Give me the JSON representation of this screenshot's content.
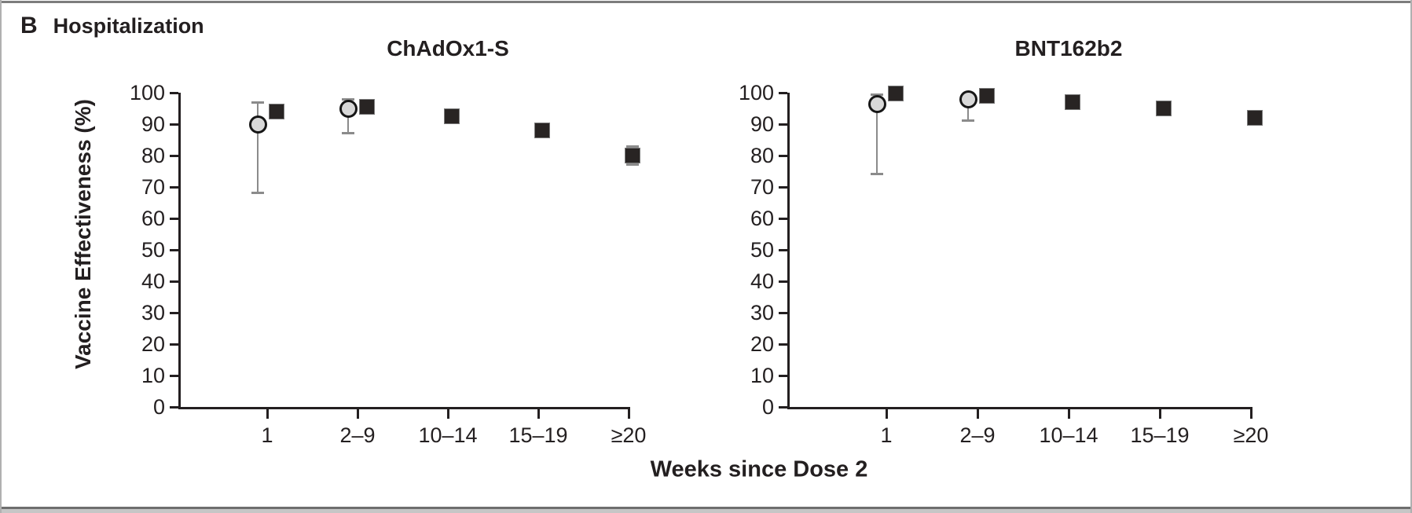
{
  "figure": {
    "panel_letter": "B",
    "panel_title": "Hospitalization",
    "y_axis_label": "Vaccine Effectiveness (%)",
    "x_axis_label": "Weeks since Dose 2",
    "colors": {
      "square_marker": "#282423",
      "circle_marker_fill": "#d8d8d8",
      "circle_marker_border": "#161616",
      "error_bar": "#8b8b8b",
      "axis_and_text": "#231f20",
      "frame_border": "#7d7d7d",
      "background": "#ffffff"
    }
  },
  "chart_data": [
    {
      "type": "scatter",
      "title": "ChAdOx1-S",
      "xlabel": "Weeks since Dose 2",
      "ylabel": "Vaccine Effectiveness (%)",
      "ylim": [
        0,
        100
      ],
      "y_ticks": [
        0,
        10,
        20,
        30,
        40,
        50,
        60,
        70,
        80,
        90,
        100
      ],
      "categories": [
        "1",
        "2–9",
        "10–14",
        "15–19",
        "≥20"
      ],
      "grid": false,
      "legend": "none",
      "series": [
        {
          "name": "gray-circle",
          "marker": "circle",
          "points": [
            {
              "category": "1",
              "value": 90,
              "ci_low": 68,
              "ci_high": 97
            },
            {
              "category": "2–9",
              "value": 95,
              "ci_low": 87,
              "ci_high": 98
            }
          ]
        },
        {
          "name": "black-square",
          "marker": "square",
          "points": [
            {
              "category": "1",
              "value": 94,
              "ci_low": 92,
              "ci_high": 96
            },
            {
              "category": "2–9",
              "value": 95.5,
              "ci_low": 94,
              "ci_high": 97
            },
            {
              "category": "10–14",
              "value": 92.5,
              "ci_low": 91,
              "ci_high": 94
            },
            {
              "category": "15–19",
              "value": 88,
              "ci_low": 86,
              "ci_high": 89.5
            },
            {
              "category": "≥20",
              "value": 80,
              "ci_low": 77,
              "ci_high": 83
            }
          ]
        }
      ]
    },
    {
      "type": "scatter",
      "title": "BNT162b2",
      "xlabel": "Weeks since Dose 2",
      "ylabel": "Vaccine Effectiveness (%)",
      "ylim": [
        0,
        100
      ],
      "y_ticks": [
        0,
        10,
        20,
        30,
        40,
        50,
        60,
        70,
        80,
        90,
        100
      ],
      "categories": [
        "1",
        "2–9",
        "10–14",
        "15–19",
        "≥20"
      ],
      "grid": false,
      "legend": "none",
      "series": [
        {
          "name": "gray-circle",
          "marker": "circle",
          "points": [
            {
              "category": "1",
              "value": 96.5,
              "ci_low": 74,
              "ci_high": 99.5
            },
            {
              "category": "2–9",
              "value": 98,
              "ci_low": 91,
              "ci_high": 99.5
            }
          ]
        },
        {
          "name": "black-square",
          "marker": "square",
          "points": [
            {
              "category": "1",
              "value": 99.7,
              "ci_low": 99,
              "ci_high": 100
            },
            {
              "category": "2–9",
              "value": 99,
              "ci_low": 98,
              "ci_high": 99.5
            },
            {
              "category": "10–14",
              "value": 97,
              "ci_low": 95.5,
              "ci_high": 98
            },
            {
              "category": "15–19",
              "value": 95,
              "ci_low": 94,
              "ci_high": 96
            },
            {
              "category": "≥20",
              "value": 92,
              "ci_low": 90.5,
              "ci_high": 93
            }
          ]
        }
      ]
    }
  ]
}
